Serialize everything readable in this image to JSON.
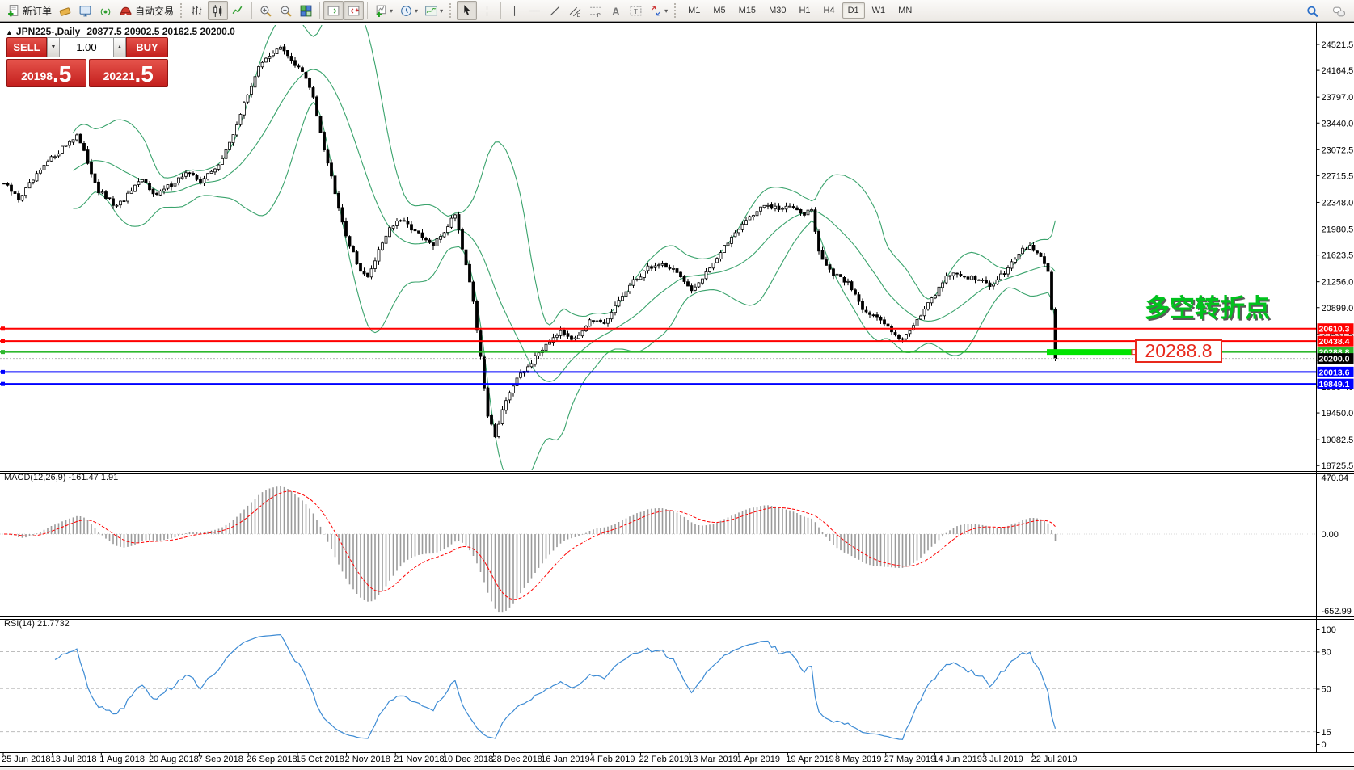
{
  "toolbar": {
    "new_order_label": "新订单",
    "auto_trading_label": "自动交易",
    "timeframes": [
      "M1",
      "M5",
      "M15",
      "M30",
      "H1",
      "H4",
      "D1",
      "W1",
      "MN"
    ],
    "active_timeframe": "D1",
    "icons": [
      "new-order",
      "eraser",
      "terminal",
      "signals",
      "auto-trading",
      "bar-chart",
      "candlestick-chart",
      "line-chart",
      "zoom-in",
      "zoom-out",
      "tile-windows",
      "auto-scroll",
      "chart-shift-end",
      "new-chart",
      "profiles",
      "indicators",
      "cursor",
      "crosshair",
      "vertical-line",
      "horizontal-line",
      "trendline",
      "equidistant-channel",
      "fibonacci",
      "text",
      "text-label",
      "arrow-objects",
      "search",
      "chat"
    ]
  },
  "chart": {
    "symbol_title": "JPN225-,Daily",
    "ohlc": "20877.5 20902.5 20162.5 20200.0",
    "trade_panel": {
      "sell_label": "SELL",
      "buy_label": "BUY",
      "volume": "1.00",
      "sell_price_main": "20198",
      "sell_price_frac": ".5",
      "buy_price_main": "20221",
      "buy_price_frac": ".5"
    },
    "annotation": "多空转折点",
    "price_callout": "20288.8",
    "y_ticks": [
      "24521.5",
      "24164.5",
      "23797.0",
      "23440.0",
      "23072.5",
      "22715.5",
      "22348.0",
      "21980.5",
      "21623.5",
      "21256.0",
      "20899.0",
      "20531.5",
      "20174.5",
      "19807.0",
      "19450.0",
      "19082.5",
      "18725.5"
    ],
    "hlines": [
      {
        "price": 20610.3,
        "label": "20610.3",
        "color": "#ff0000"
      },
      {
        "price": 20438.4,
        "label": "20438.4",
        "color": "#ff0000"
      },
      {
        "price": 20288.8,
        "label": "20288.8",
        "color": "#2db82d",
        "highlight": true
      },
      {
        "price": 20013.6,
        "label": "20013.6",
        "color": "#0000ff"
      },
      {
        "price": 19849.1,
        "label": "19849.1",
        "color": "#0000ff"
      }
    ],
    "current_price": {
      "value": 20200.0,
      "label": "20200.0"
    },
    "colors": {
      "bull": "#ffffff",
      "bear": "#000000",
      "bollinger": "#3aa36c",
      "macd_histogram": "#9a9a9a",
      "macd_signal": "#ff0000",
      "rsi_line": "#3d8bd4",
      "annotation_green": "#00c21d",
      "callout_red": "#e8291c",
      "hline_red": "#ff0000",
      "hline_blue": "#0000ff",
      "hline_green": "#2db82d"
    }
  },
  "macd": {
    "label": "MACD(12,26,9) -161.47 1.91",
    "axis": [
      "470.04",
      "0.00",
      "-652.99"
    ]
  },
  "rsi": {
    "label": "RSI(14) 21.7732",
    "axis": [
      "100",
      "80",
      "50",
      "15",
      "0"
    ],
    "levels": [
      80,
      50,
      15
    ]
  },
  "x_axis": {
    "dates": [
      "25 Jun 2018",
      "13 Jul 2018",
      "1 Aug 2018",
      "20 Aug 2018",
      "7 Sep 2018",
      "26 Sep 2018",
      "15 Oct 2018",
      "2 Nov 2018",
      "21 Nov 2018",
      "10 Dec 2018",
      "28 Dec 2018",
      "16 Jan 2019",
      "4 Feb 2019",
      "22 Feb 2019",
      "13 Mar 2019",
      "1 Apr 2019",
      "19 Apr 2019",
      "8 May 2019",
      "27 May 2019",
      "14 Jun 2019",
      "3 Jul 2019",
      "22 Jul 2019"
    ]
  },
  "chart_data": {
    "type": "candlestick",
    "symbol": "JPN225",
    "timeframe": "Daily",
    "visible_candles": 290,
    "price_axis_range": [
      18725.5,
      24521.5
    ],
    "last_candle": {
      "open": 20877.5,
      "high": 20902.5,
      "low": 20162.5,
      "close": 20200.0
    },
    "bid": "20198.5",
    "ask": "20221.5",
    "indicators": [
      "Bollinger Bands(20,2)",
      "MACD(12,26,9)",
      "RSI(14)"
    ],
    "macd_range": [
      -652.99,
      470.04
    ],
    "close_anchors": [
      [
        0,
        22600
      ],
      [
        4,
        22400
      ],
      [
        8,
        22650
      ],
      [
        12,
        22900
      ],
      [
        16,
        23100
      ],
      [
        20,
        23280
      ],
      [
        23,
        22900
      ],
      [
        26,
        22500
      ],
      [
        31,
        22280
      ],
      [
        35,
        22500
      ],
      [
        38,
        22650
      ],
      [
        42,
        22450
      ],
      [
        46,
        22600
      ],
      [
        50,
        22750
      ],
      [
        54,
        22650
      ],
      [
        58,
        22800
      ],
      [
        62,
        23150
      ],
      [
        66,
        23700
      ],
      [
        69,
        24100
      ],
      [
        72,
        24350
      ],
      [
        76,
        24470
      ],
      [
        79,
        24300
      ],
      [
        82,
        24150
      ],
      [
        85,
        23800
      ],
      [
        88,
        23100
      ],
      [
        91,
        22500
      ],
      [
        94,
        21900
      ],
      [
        97,
        21500
      ],
      [
        100,
        21300
      ],
      [
        103,
        21700
      ],
      [
        106,
        22000
      ],
      [
        109,
        22100
      ],
      [
        112,
        22000
      ],
      [
        115,
        21850
      ],
      [
        118,
        21750
      ],
      [
        121,
        21950
      ],
      [
        124,
        22200
      ],
      [
        127,
        21500
      ],
      [
        129,
        21000
      ],
      [
        131,
        20200
      ],
      [
        133,
        19400
      ],
      [
        135,
        19150
      ],
      [
        138,
        19650
      ],
      [
        141,
        19900
      ],
      [
        145,
        20150
      ],
      [
        149,
        20400
      ],
      [
        153,
        20600
      ],
      [
        157,
        20450
      ],
      [
        161,
        20750
      ],
      [
        165,
        20650
      ],
      [
        169,
        21000
      ],
      [
        173,
        21250
      ],
      [
        177,
        21450
      ],
      [
        181,
        21500
      ],
      [
        185,
        21400
      ],
      [
        189,
        21100
      ],
      [
        193,
        21400
      ],
      [
        197,
        21650
      ],
      [
        201,
        21950
      ],
      [
        205,
        22150
      ],
      [
        209,
        22300
      ],
      [
        213,
        22250
      ],
      [
        217,
        22300
      ],
      [
        220,
        22200
      ],
      [
        222,
        22250
      ],
      [
        224,
        21650
      ],
      [
        228,
        21350
      ],
      [
        232,
        21250
      ],
      [
        236,
        20900
      ],
      [
        240,
        20750
      ],
      [
        244,
        20600
      ],
      [
        247,
        20450
      ],
      [
        251,
        20750
      ],
      [
        255,
        21000
      ],
      [
        259,
        21350
      ],
      [
        263,
        21350
      ],
      [
        267,
        21300
      ],
      [
        271,
        21200
      ],
      [
        275,
        21400
      ],
      [
        279,
        21650
      ],
      [
        282,
        21750
      ],
      [
        285,
        21600
      ],
      [
        287,
        21400
      ],
      [
        288,
        20870
      ],
      [
        289,
        20200
      ]
    ]
  }
}
